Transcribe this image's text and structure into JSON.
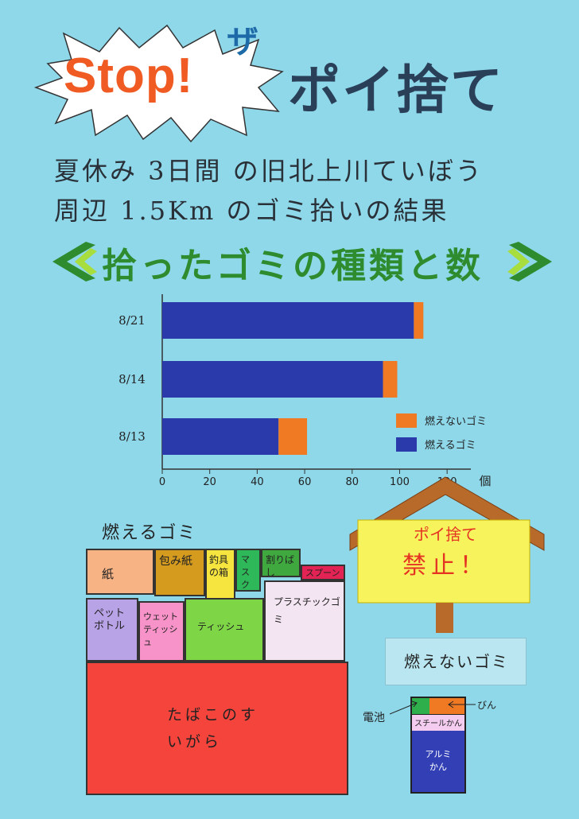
{
  "title": {
    "stop": "Stop!",
    "za": "ザ",
    "main": "ポイ捨て"
  },
  "subtitle": {
    "line1": "夏休み 3日間 の旧北上川ていぼう",
    "line2": "周辺 1.5Km のゴミ拾いの結果"
  },
  "section_heading": "拾ったゴミの種類と数",
  "chart_data": {
    "type": "bar",
    "orientation": "horizontal",
    "stacked": true,
    "categories": [
      "8/21",
      "8/14",
      "8/13"
    ],
    "series": [
      {
        "name": "燃えるゴミ",
        "values": [
          106,
          93,
          49
        ],
        "color": "#2a3aaa"
      },
      {
        "name": "燃えないゴミ",
        "values": [
          4,
          6,
          12
        ],
        "color": "#f07a24"
      }
    ],
    "xlim": [
      0,
      130
    ],
    "x_ticks": [
      "0",
      "20",
      "40",
      "60",
      "80",
      "100",
      "120"
    ],
    "x_unit": "個",
    "legend_position": "right",
    "legend": [
      "燃えないゴミ",
      "燃えるゴミ"
    ]
  },
  "burnable_label": "燃えるゴミ",
  "burnable_items": [
    {
      "label": "紙",
      "color": "#f7b384"
    },
    {
      "label": "包み紙",
      "color": "#d49b1f"
    },
    {
      "label": "釣具の箱",
      "color": "#f6e53e"
    },
    {
      "label": "マスク",
      "color": "#2fb859"
    },
    {
      "label": "割りばし",
      "color": "#3fa83f"
    },
    {
      "label": "スプーン",
      "color": "#e32353"
    },
    {
      "label": "ペットボトル",
      "color": "#b9a3e7"
    },
    {
      "label": "ウェットティッシュ",
      "color": "#f793c8"
    },
    {
      "label": "ティッシュ",
      "color": "#7ed647"
    },
    {
      "label": "プラスチックゴミ",
      "color": "#f4e5f2"
    },
    {
      "label": "たばこのすいがら",
      "color": "#f4443c"
    }
  ],
  "sign": {
    "line1": "ポイ捨て",
    "line2": "禁止！"
  },
  "nonburnable_label": "燃えないゴミ",
  "nonburnable_items": [
    {
      "label": "電池",
      "color": "#2fae4c"
    },
    {
      "label": "びん",
      "color": "#f07a24"
    },
    {
      "label": "スチールかん",
      "color": "#f4ccf0"
    },
    {
      "label": "アルミかん",
      "color": "#3340b5"
    }
  ]
}
